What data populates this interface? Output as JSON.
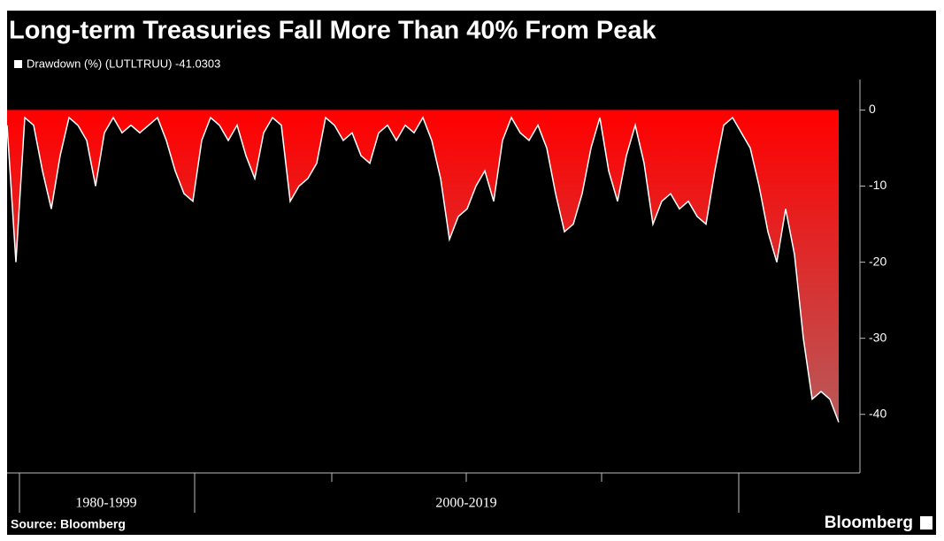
{
  "chart_data": {
    "type": "area",
    "title": "Long-term Treasuries Fall More Than 40% From Peak",
    "series": [
      {
        "name": "Drawdown (%) (LUTLTRUU) -41.0303",
        "color": "#ff0000",
        "values": [
          -2,
          -20,
          -1,
          -2,
          -8,
          -13,
          -6,
          -1,
          -2,
          -4,
          -10,
          -3,
          -1,
          -3,
          -2,
          -3,
          -2,
          -1,
          -4,
          -8,
          -11,
          -12,
          -4,
          -1,
          -2,
          -4,
          -2,
          -6,
          -9,
          -3,
          -1,
          -2,
          -12,
          -10,
          -9,
          -7,
          -1,
          -2,
          -4,
          -3,
          -6,
          -7,
          -3,
          -2,
          -4,
          -2,
          -3,
          -1,
          -4,
          -9,
          -17,
          -14,
          -13,
          -10,
          -8,
          -12,
          -4,
          -1,
          -3,
          -4,
          -2,
          -5,
          -11,
          -16,
          -15,
          -11,
          -5,
          -1,
          -8,
          -12,
          -6,
          -2,
          -7,
          -15,
          -12,
          -11,
          -13,
          -12,
          -14,
          -15,
          -8,
          -2,
          -1,
          -3,
          -5,
          -10,
          -16,
          -20,
          -13,
          -19,
          -30,
          -38,
          -37,
          -38,
          -41.03
        ]
      }
    ],
    "period_labels": [
      "1980-1999",
      "2000-2019"
    ],
    "ylim": [
      -47.7,
      4
    ],
    "yticks": [
      0,
      -10,
      -20,
      -30,
      -40
    ],
    "source": "Source: Bloomberg",
    "brand": "Bloomberg"
  }
}
